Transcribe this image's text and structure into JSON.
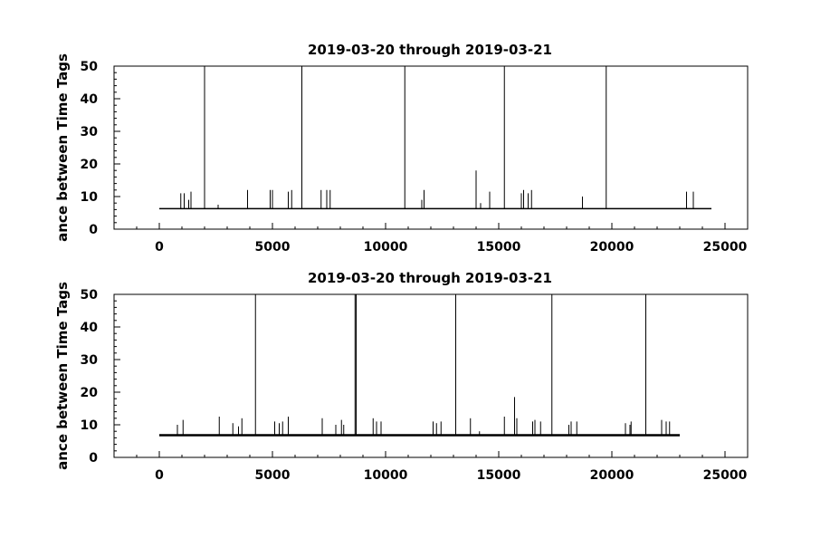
{
  "chart_data": [
    {
      "type": "line",
      "title": "2019-03-20 through 2019-03-21",
      "xlabel": "",
      "ylabel": "ance between Time Tags",
      "xlim": [
        -2000,
        26000
      ],
      "ylim": [
        0,
        50
      ],
      "x_ticks": [
        0,
        5000,
        10000,
        15000,
        20000,
        25000
      ],
      "y_ticks": [
        0,
        10,
        20,
        30,
        40,
        50
      ],
      "grid": false,
      "baseline": 6.3,
      "x_range": [
        0,
        24400
      ],
      "spikes": [
        {
          "x": 950,
          "y": 11
        },
        {
          "x": 1100,
          "y": 11
        },
        {
          "x": 1300,
          "y": 9
        },
        {
          "x": 1400,
          "y": 11.5
        },
        {
          "x": 2000,
          "y": 50
        },
        {
          "x": 2600,
          "y": 7.5
        },
        {
          "x": 3900,
          "y": 12
        },
        {
          "x": 4900,
          "y": 12
        },
        {
          "x": 5000,
          "y": 12
        },
        {
          "x": 5700,
          "y": 11.5
        },
        {
          "x": 5850,
          "y": 12
        },
        {
          "x": 6300,
          "y": 50
        },
        {
          "x": 7150,
          "y": 12
        },
        {
          "x": 7400,
          "y": 12
        },
        {
          "x": 7550,
          "y": 12
        },
        {
          "x": 10850,
          "y": 50
        },
        {
          "x": 11600,
          "y": 9
        },
        {
          "x": 11700,
          "y": 12
        },
        {
          "x": 14000,
          "y": 18
        },
        {
          "x": 14200,
          "y": 8
        },
        {
          "x": 14600,
          "y": 11.5
        },
        {
          "x": 15250,
          "y": 50
        },
        {
          "x": 16000,
          "y": 11
        },
        {
          "x": 16100,
          "y": 12
        },
        {
          "x": 16300,
          "y": 11
        },
        {
          "x": 16450,
          "y": 12
        },
        {
          "x": 18700,
          "y": 10
        },
        {
          "x": 19750,
          "y": 50
        },
        {
          "x": 23300,
          "y": 11.5
        },
        {
          "x": 23600,
          "y": 11.5
        }
      ]
    },
    {
      "type": "line",
      "title": "2019-03-20 through 2019-03-21",
      "xlabel": "",
      "ylabel": "ance between Time Tags",
      "xlim": [
        -2000,
        26000
      ],
      "ylim": [
        0,
        50
      ],
      "x_ticks": [
        0,
        5000,
        10000,
        15000,
        20000,
        25000
      ],
      "y_ticks": [
        0,
        10,
        20,
        30,
        40,
        50
      ],
      "grid": false,
      "baseline": 6.8,
      "x_range": [
        0,
        23000
      ],
      "spikes": [
        {
          "x": 800,
          "y": 10
        },
        {
          "x": 1050,
          "y": 11.5
        },
        {
          "x": 2650,
          "y": 12.5
        },
        {
          "x": 3250,
          "y": 10.5
        },
        {
          "x": 3500,
          "y": 9.5
        },
        {
          "x": 3650,
          "y": 12
        },
        {
          "x": 4250,
          "y": 50
        },
        {
          "x": 5100,
          "y": 11
        },
        {
          "x": 5300,
          "y": 10.5
        },
        {
          "x": 5450,
          "y": 11
        },
        {
          "x": 5700,
          "y": 12.5
        },
        {
          "x": 7200,
          "y": 12
        },
        {
          "x": 7800,
          "y": 10
        },
        {
          "x": 8050,
          "y": 11.5
        },
        {
          "x": 8150,
          "y": 10
        },
        {
          "x": 8650,
          "y": 50
        },
        {
          "x": 8700,
          "y": 50
        },
        {
          "x": 9450,
          "y": 12
        },
        {
          "x": 9600,
          "y": 11
        },
        {
          "x": 9800,
          "y": 11
        },
        {
          "x": 12100,
          "y": 11
        },
        {
          "x": 12250,
          "y": 10.5
        },
        {
          "x": 12450,
          "y": 11
        },
        {
          "x": 13100,
          "y": 50
        },
        {
          "x": 13750,
          "y": 12
        },
        {
          "x": 14150,
          "y": 8
        },
        {
          "x": 15250,
          "y": 12.5
        },
        {
          "x": 15700,
          "y": 18.5
        },
        {
          "x": 15800,
          "y": 12
        },
        {
          "x": 16500,
          "y": 11
        },
        {
          "x": 16600,
          "y": 11.5
        },
        {
          "x": 16850,
          "y": 11
        },
        {
          "x": 17350,
          "y": 50
        },
        {
          "x": 18100,
          "y": 10
        },
        {
          "x": 18200,
          "y": 11
        },
        {
          "x": 18450,
          "y": 11
        },
        {
          "x": 20600,
          "y": 10.5
        },
        {
          "x": 20800,
          "y": 10
        },
        {
          "x": 20850,
          "y": 11
        },
        {
          "x": 21500,
          "y": 50
        },
        {
          "x": 22200,
          "y": 11.5
        },
        {
          "x": 22400,
          "y": 11
        },
        {
          "x": 22550,
          "y": 11
        }
      ]
    }
  ]
}
